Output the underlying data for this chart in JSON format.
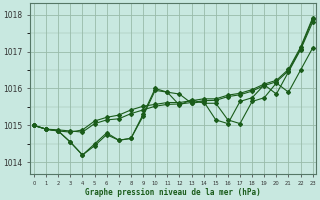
{
  "title": "Graphe pression niveau de la mer (hPa)",
  "xlabel_hours": [
    0,
    1,
    2,
    3,
    4,
    5,
    6,
    7,
    8,
    9,
    10,
    11,
    12,
    13,
    14,
    15,
    16,
    17,
    18,
    19,
    20,
    21,
    22,
    23
  ],
  "ylim": [
    1013.7,
    1018.3
  ],
  "yticks": [
    1014,
    1015,
    1016,
    1017,
    1018
  ],
  "xlim": [
    -0.3,
    23.3
  ],
  "bg_color": "#c8e8e0",
  "grid_color": "#99bbaa",
  "line_color": "#1a5c1a",
  "line1": [
    1015.0,
    1014.9,
    1014.85,
    1014.55,
    1014.2,
    1014.5,
    1014.8,
    1014.6,
    1014.65,
    1015.3,
    1016.0,
    1015.9,
    1015.85,
    1015.6,
    1015.65,
    1015.15,
    1015.05,
    1015.65,
    1015.75,
    1016.1,
    1015.85,
    1016.45,
    1017.05,
    1017.8
  ],
  "line2": [
    1015.0,
    1014.9,
    1014.85,
    1014.55,
    1014.2,
    1014.45,
    1014.75,
    1014.6,
    1014.65,
    1015.25,
    1015.95,
    1015.9,
    1015.55,
    1015.7,
    1015.6,
    1015.6,
    1015.15,
    1015.05,
    1015.65,
    1015.75,
    1016.15,
    1015.9,
    1016.5,
    1017.1
  ],
  "line3": [
    1015.0,
    1014.9,
    1014.88,
    1014.85,
    1014.82,
    1015.05,
    1015.15,
    1015.18,
    1015.32,
    1015.42,
    1015.52,
    1015.57,
    1015.58,
    1015.62,
    1015.67,
    1015.68,
    1015.78,
    1015.83,
    1015.93,
    1016.08,
    1016.18,
    1016.48,
    1017.08,
    1017.88
  ],
  "line4": [
    1015.0,
    1014.9,
    1014.85,
    1014.82,
    1014.88,
    1015.12,
    1015.22,
    1015.28,
    1015.42,
    1015.52,
    1015.57,
    1015.62,
    1015.62,
    1015.67,
    1015.72,
    1015.72,
    1015.82,
    1015.87,
    1015.97,
    1016.12,
    1016.22,
    1016.52,
    1017.12,
    1017.92
  ]
}
